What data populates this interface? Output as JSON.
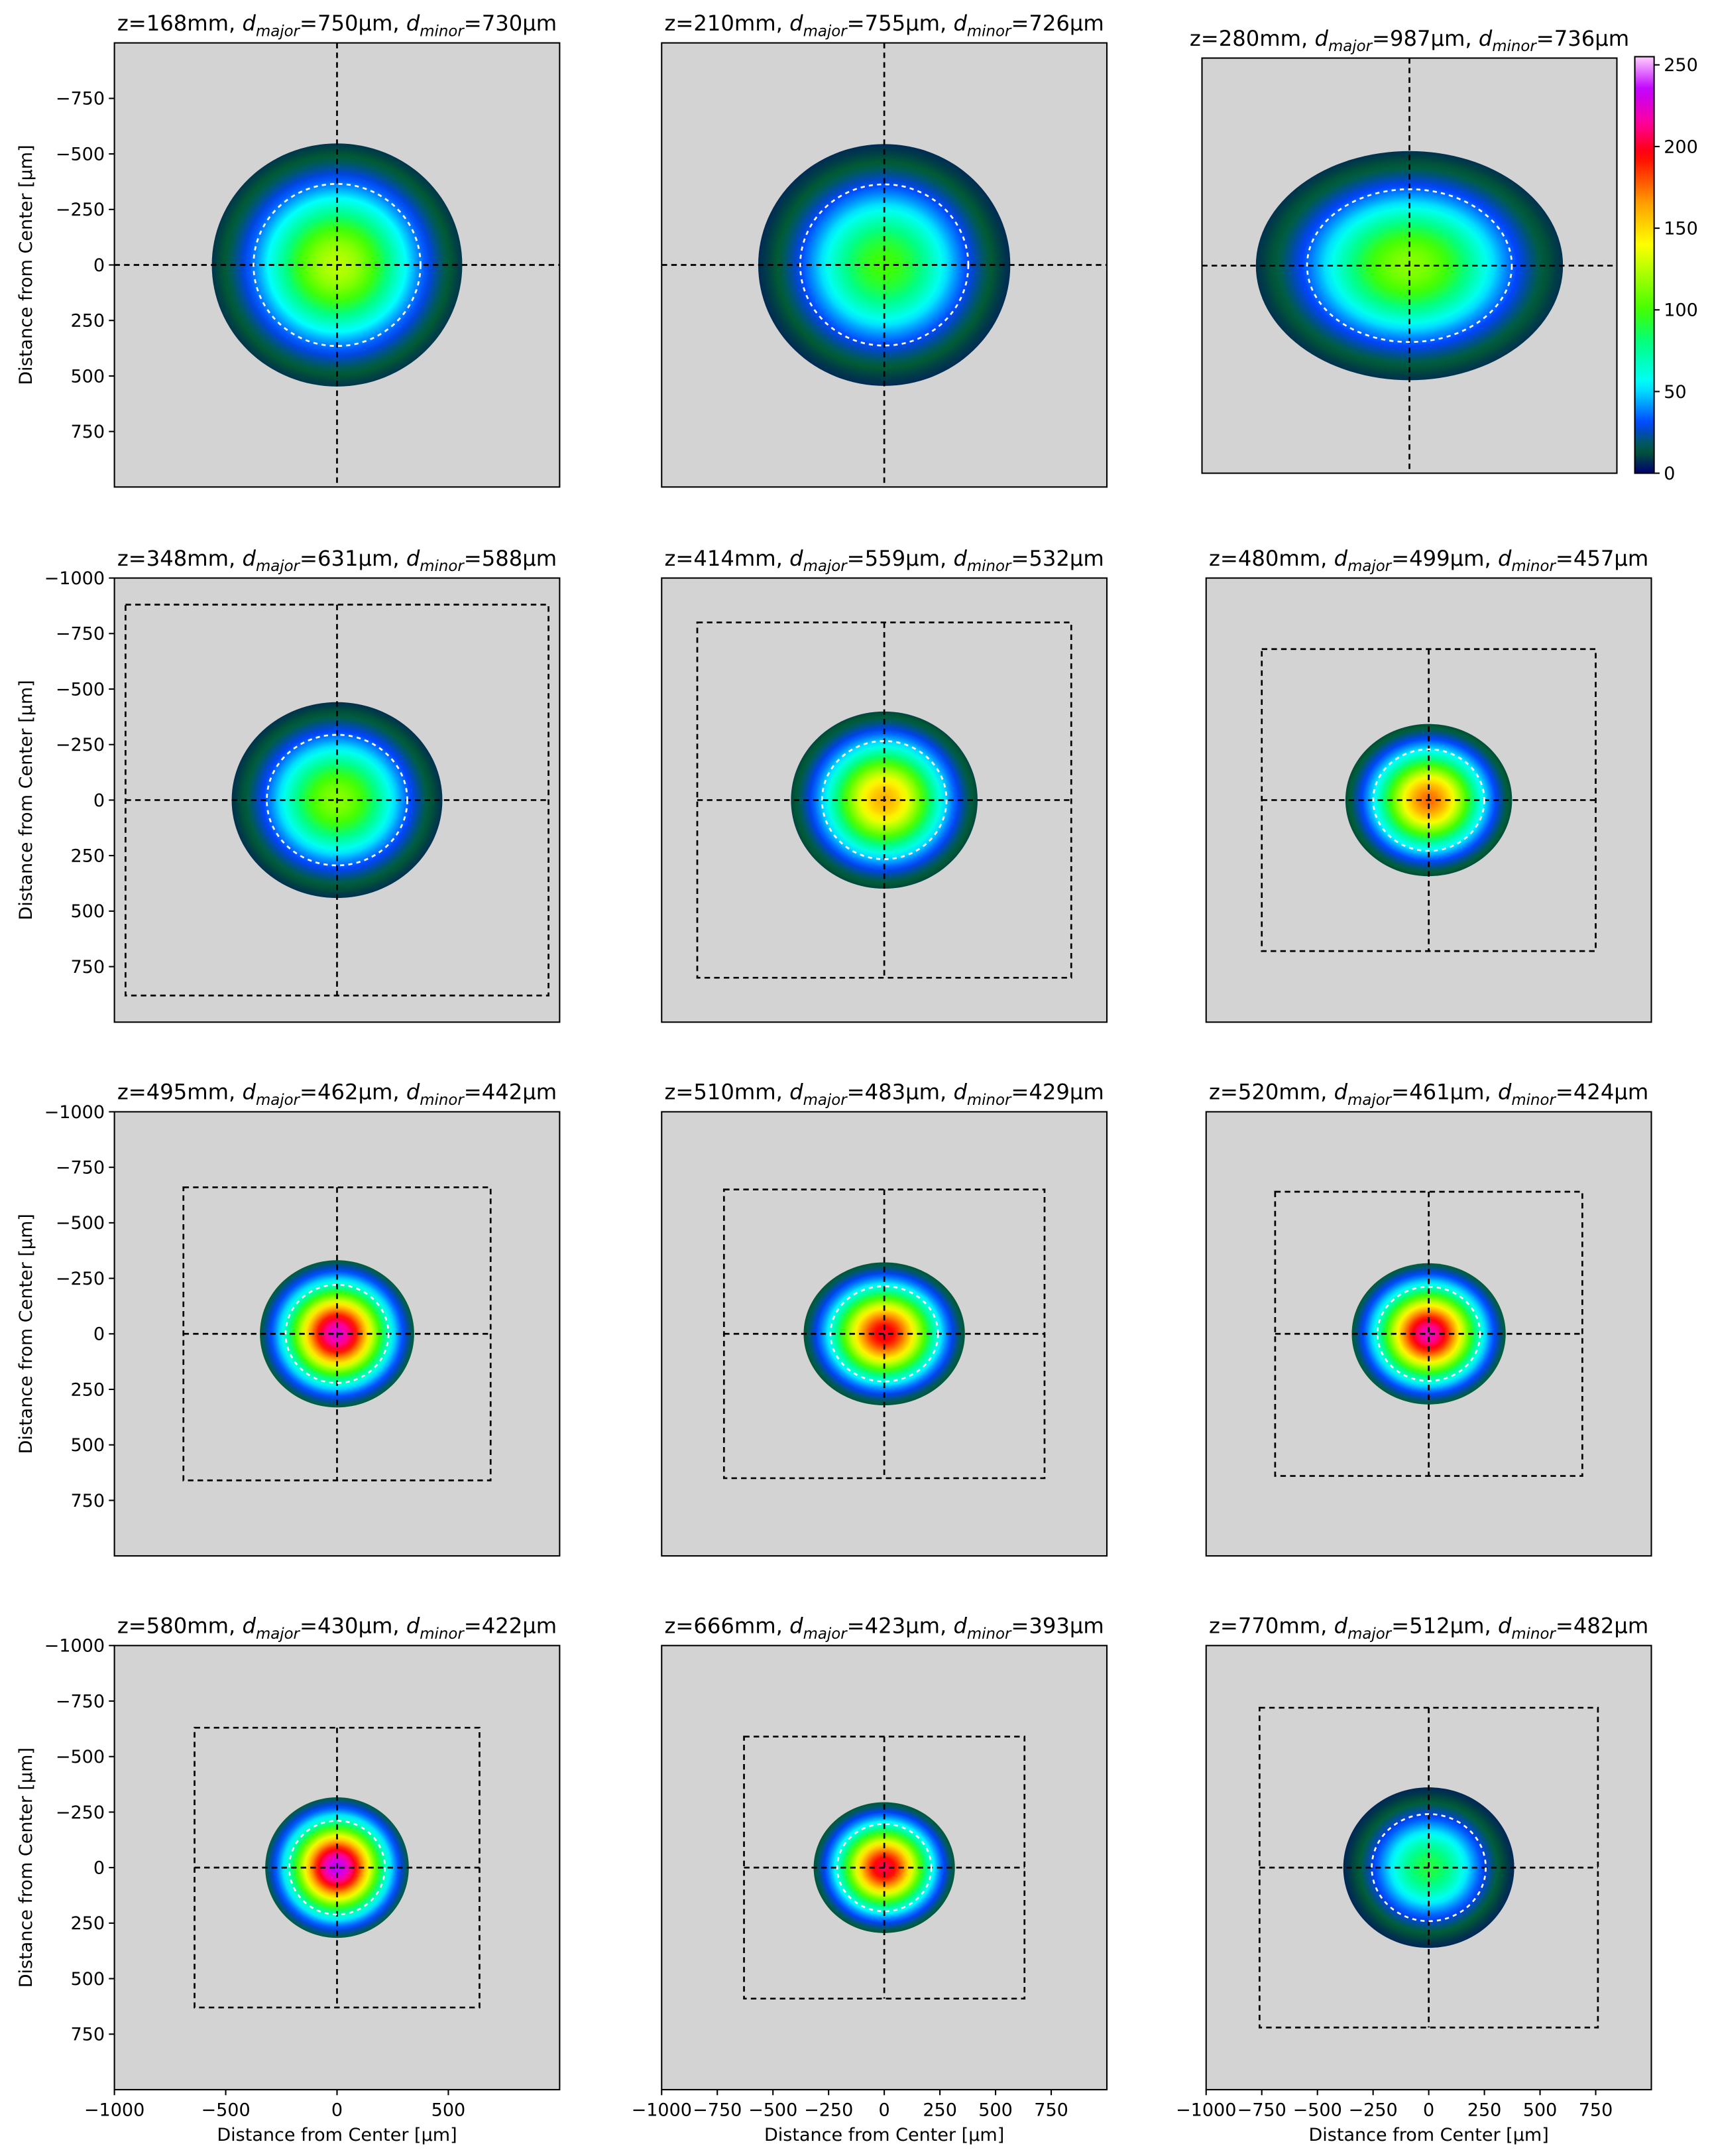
{
  "title_symbols": {
    "d": "d",
    "major": "major",
    "minor": "minor"
  },
  "chart_data": [
    {
      "type": "heatmap",
      "z_label": "z=168mm, ",
      "major_label": "=750µm, ",
      "minor_label": "=730µm",
      "d_major": 750,
      "d_minor": 730,
      "peak": 125,
      "xlim": [
        -1000,
        1000
      ],
      "ylim": [
        -1000,
        1000
      ],
      "y_inverted": true,
      "crosshair": true,
      "yticks": [
        {
          "value": -750,
          "label": "−750"
        },
        {
          "value": -500,
          "label": "−500"
        },
        {
          "value": -250,
          "label": "−250"
        },
        0,
        250,
        500,
        750
      ],
      "ylabel": "Distance from Center [µm]"
    },
    {
      "type": "heatmap",
      "z_label": "z=210mm, ",
      "major_label": "=755µm, ",
      "minor_label": "=726µm",
      "d_major": 755,
      "d_minor": 726,
      "peak": 100,
      "xlim": [
        -1000,
        1000
      ],
      "ylim": [
        -1000,
        1000
      ],
      "y_inverted": true,
      "crosshair": true
    },
    {
      "type": "heatmap",
      "z_label": "z=280mm, ",
      "major_label": "=987µm, ",
      "minor_label": "=736µm",
      "d_major": 987,
      "d_minor": 736,
      "peak": 115,
      "xlim": [
        -1000,
        1000
      ],
      "ylim": [
        -1000,
        1000
      ],
      "y_inverted": true,
      "crosshair": true,
      "colorbar": {
        "lim": [
          0,
          255
        ],
        "ticks": [
          0,
          50,
          100,
          150,
          200,
          250
        ]
      }
    },
    {
      "type": "heatmap",
      "z_label": "z=348mm, ",
      "major_label": "=631µm, ",
      "minor_label": "=588µm",
      "d_major": 631,
      "d_minor": 588,
      "peak": 115,
      "xlim": [
        -1000,
        1000
      ],
      "ylim": [
        -1000,
        1000
      ],
      "y_inverted": true,
      "roi": {
        "x": [
          -950,
          950
        ],
        "y": [
          -880,
          880
        ]
      },
      "yticks": [
        {
          "value": -1000,
          "label": "−1000"
        },
        {
          "value": -750,
          "label": "−750"
        },
        {
          "value": -500,
          "label": "−500"
        },
        {
          "value": -250,
          "label": "−250"
        },
        0,
        250,
        500,
        750
      ],
      "ylabel": "Distance from Center [µm]"
    },
    {
      "type": "heatmap",
      "z_label": "z=414mm, ",
      "major_label": "=559µm, ",
      "minor_label": "=532µm",
      "d_major": 559,
      "d_minor": 532,
      "peak": 160,
      "xlim": [
        -1000,
        1000
      ],
      "ylim": [
        -1000,
        1000
      ],
      "y_inverted": true,
      "roi": {
        "x": [
          -840,
          840
        ],
        "y": [
          -800,
          800
        ]
      }
    },
    {
      "type": "heatmap",
      "z_label": "z=480mm, ",
      "major_label": "=499µm, ",
      "minor_label": "=457µm",
      "d_major": 499,
      "d_minor": 457,
      "peak": 175,
      "xlim": [
        -1000,
        1000
      ],
      "ylim": [
        -1000,
        1000
      ],
      "y_inverted": true,
      "roi": {
        "x": [
          -750,
          750
        ],
        "y": [
          -680,
          680
        ]
      }
    },
    {
      "type": "heatmap",
      "z_label": "z=495mm, ",
      "major_label": "=462µm, ",
      "minor_label": "=442µm",
      "d_major": 462,
      "d_minor": 442,
      "peak": 225,
      "xlim": [
        -1000,
        1000
      ],
      "ylim": [
        -1000,
        1000
      ],
      "y_inverted": true,
      "roi": {
        "x": [
          -690,
          690
        ],
        "y": [
          -660,
          660
        ]
      },
      "yticks": [
        {
          "value": -1000,
          "label": "−1000"
        },
        {
          "value": -750,
          "label": "−750"
        },
        {
          "value": -500,
          "label": "−500"
        },
        {
          "value": -250,
          "label": "−250"
        },
        0,
        250,
        500,
        750
      ],
      "ylabel": "Distance from Center [µm]"
    },
    {
      "type": "heatmap",
      "z_label": "z=510mm, ",
      "major_label": "=483µm, ",
      "minor_label": "=429µm",
      "d_major": 483,
      "d_minor": 429,
      "peak": 200,
      "xlim": [
        -1000,
        1000
      ],
      "ylim": [
        -1000,
        1000
      ],
      "y_inverted": true,
      "roi": {
        "x": [
          -720,
          720
        ],
        "y": [
          -650,
          650
        ]
      }
    },
    {
      "type": "heatmap",
      "z_label": "z=520mm, ",
      "major_label": "=461µm, ",
      "minor_label": "=424µm",
      "d_major": 461,
      "d_minor": 424,
      "peak": 220,
      "xlim": [
        -1000,
        1000
      ],
      "ylim": [
        -1000,
        1000
      ],
      "y_inverted": true,
      "roi": {
        "x": [
          -690,
          690
        ],
        "y": [
          -640,
          640
        ]
      }
    },
    {
      "type": "heatmap",
      "z_label": "z=580mm, ",
      "major_label": "=430µm, ",
      "minor_label": "=422µm",
      "d_major": 430,
      "d_minor": 422,
      "peak": 235,
      "xlim": [
        -1000,
        1000
      ],
      "ylim": [
        -1000,
        1000
      ],
      "y_inverted": true,
      "roi": {
        "x": [
          -640,
          640
        ],
        "y": [
          -630,
          630
        ]
      },
      "yticks": [
        {
          "value": -1000,
          "label": "−1000"
        },
        {
          "value": -750,
          "label": "−750"
        },
        {
          "value": -500,
          "label": "−500"
        },
        {
          "value": -250,
          "label": "−250"
        },
        0,
        250,
        500,
        750
      ],
      "ylabel": "Distance from Center [µm]",
      "xticks": [
        {
          "value": -1000,
          "label": "−1000"
        },
        {
          "value": -500,
          "label": "−500"
        },
        0,
        500
      ],
      "xlabel": "Distance from Center [µm]"
    },
    {
      "type": "heatmap",
      "z_label": "z=666mm, ",
      "major_label": "=423µm, ",
      "minor_label": "=393µm",
      "d_major": 423,
      "d_minor": 393,
      "peak": 205,
      "xlim": [
        -1000,
        1000
      ],
      "ylim": [
        -1000,
        1000
      ],
      "y_inverted": true,
      "roi": {
        "x": [
          -630,
          630
        ],
        "y": [
          -590,
          590
        ]
      },
      "xticks": [
        {
          "value": -1000,
          "label": "−1000"
        },
        {
          "value": -750,
          "label": "−750"
        },
        {
          "value": -500,
          "label": "−500"
        },
        {
          "value": -250,
          "label": "−250"
        },
        0,
        250,
        500,
        750
      ],
      "xlabel": "Distance from Center [µm]"
    },
    {
      "type": "heatmap",
      "z_label": "z=770mm, ",
      "major_label": "=512µm, ",
      "minor_label": "=482µm",
      "d_major": 512,
      "d_minor": 482,
      "peak": 90,
      "xlim": [
        -1000,
        1000
      ],
      "ylim": [
        -1000,
        1000
      ],
      "y_inverted": true,
      "roi": {
        "x": [
          -760,
          760
        ],
        "y": [
          -720,
          720
        ]
      },
      "xticks": [
        {
          "value": -1000,
          "label": "−1000"
        },
        {
          "value": -750,
          "label": "−750"
        },
        {
          "value": -500,
          "label": "−500"
        },
        {
          "value": -250,
          "label": "−250"
        },
        0,
        250,
        500,
        750
      ],
      "xlabel": "Distance from Center [µm]"
    }
  ]
}
